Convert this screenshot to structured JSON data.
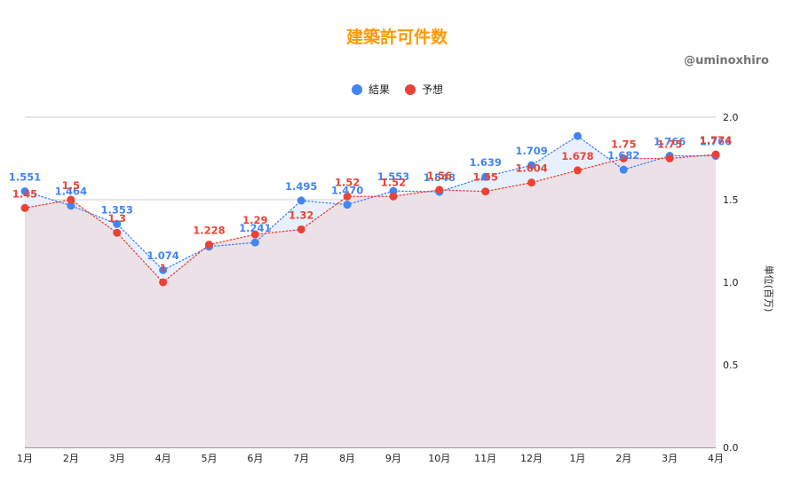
{
  "chart_data": {
    "type": "line",
    "title": "建築許可件数",
    "credit": "@uminoxhiro",
    "ylabel": "単位(百万)",
    "ylim": [
      0,
      2
    ],
    "yticks": [
      "0.0",
      "0.5",
      "1.0",
      "1.5",
      "2.0"
    ],
    "categories": [
      "1月",
      "2月",
      "3月",
      "4月",
      "5月",
      "6月",
      "7月",
      "8月",
      "9月",
      "10月",
      "11月",
      "12月",
      "1月",
      "2月",
      "3月",
      "4月"
    ],
    "legend_position": "top",
    "grid": true,
    "series": [
      {
        "name": "結果",
        "color": "#4285f4",
        "fill": "#e8f0fe",
        "values": [
          1.551,
          1.464,
          1.353,
          1.074,
          1.216,
          1.241,
          1.495,
          1.47,
          1.553,
          1.548,
          1.639,
          1.709,
          1.886,
          1.682,
          1.766,
          1.766
        ],
        "labels": [
          "1.551",
          "1.464",
          "1.353",
          "1.074",
          "",
          "1.241",
          "1.495",
          "1.470",
          "1.553",
          "1.548",
          "1.639",
          "1.709",
          "",
          "1.682",
          "1.766",
          "1.766"
        ]
      },
      {
        "name": "予想",
        "color": "#ea4335",
        "fill": "#ebdfe6",
        "values": [
          1.45,
          1.5,
          1.3,
          1.0,
          1.228,
          1.29,
          1.32,
          1.52,
          1.52,
          1.56,
          1.55,
          1.604,
          1.678,
          1.75,
          1.75,
          1.774
        ],
        "labels": [
          "1.45",
          "1.5",
          "1.3",
          "1",
          "1.228",
          "1.29",
          "1.32",
          "1.52",
          "1.52",
          "1.56",
          "1.55",
          "1.604",
          "1.678",
          "1.75",
          "1.75",
          "1.774"
        ]
      }
    ]
  }
}
